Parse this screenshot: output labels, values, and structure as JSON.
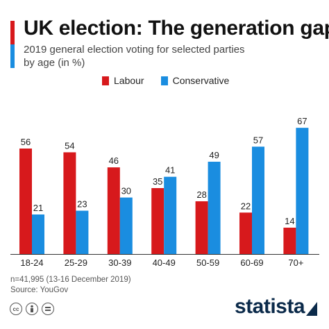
{
  "header": {
    "title": "UK election: The generation gap",
    "subtitle": "2019 general election voting for selected parties by age (in %)"
  },
  "colors": {
    "labour": "#d7191c",
    "conservative": "#1a8de0",
    "brand": "#0b2a4a"
  },
  "chart_data": {
    "type": "bar",
    "categories": [
      "18-24",
      "25-29",
      "30-39",
      "40-49",
      "50-59",
      "60-69",
      "70+"
    ],
    "series": [
      {
        "name": "Labour",
        "values": [
          56,
          54,
          46,
          35,
          28,
          22,
          14
        ]
      },
      {
        "name": "Conservative",
        "values": [
          21,
          23,
          30,
          41,
          49,
          57,
          67
        ]
      }
    ],
    "ylim": [
      0,
      70
    ],
    "grid": false,
    "legend": "top-center",
    "xlabel": "",
    "ylabel": ""
  },
  "footer": {
    "note": "n=41,995 (13-16 December 2019)",
    "source": "Source: YouGov"
  },
  "icons": [
    "cc-icon",
    "attribution-icon",
    "equals-icon"
  ],
  "brand": {
    "name": "statista"
  }
}
